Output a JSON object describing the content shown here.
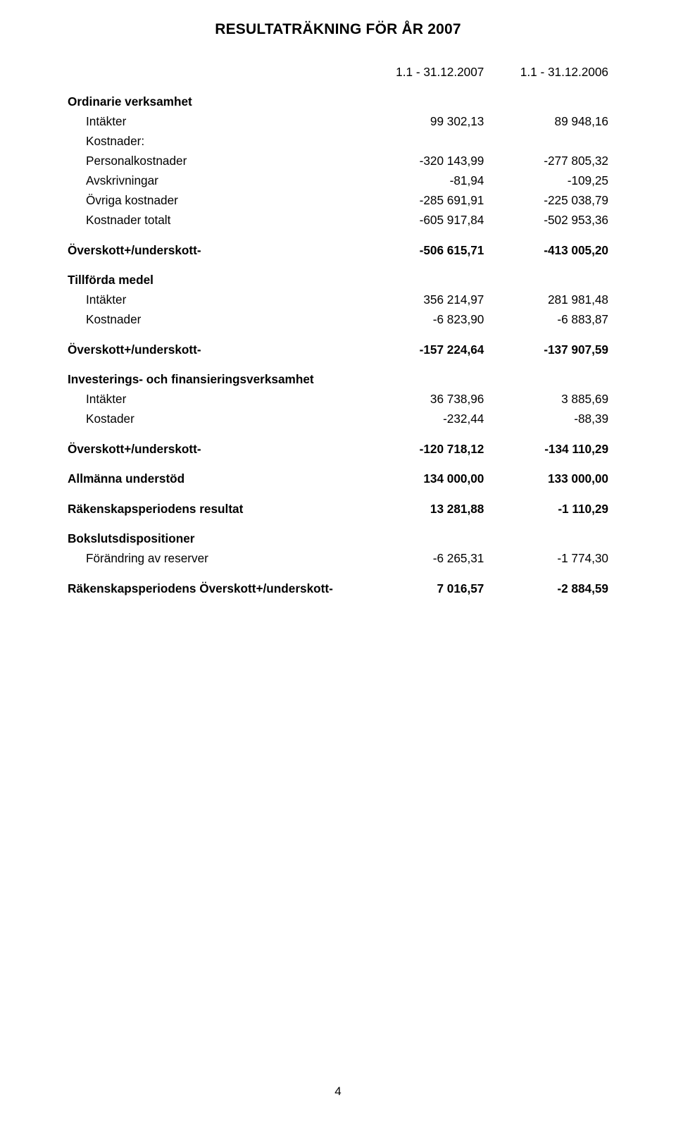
{
  "title": "RESULTATRÄKNING FÖR ÅR 2007",
  "periods": {
    "p1": "1.1 - 31.12.2007",
    "p2": "1.1 - 31.12.2006"
  },
  "section_ordinarie": {
    "heading": "Ordinarie verksamhet"
  },
  "ord_int": {
    "label": "Intäkter",
    "v1": "99 302,13",
    "v2": "89 948,16"
  },
  "ord_kostn_h": {
    "label": "Kostnader:"
  },
  "ord_pers": {
    "label": "Personalkostnader",
    "v1": "-320 143,99",
    "v2": "-277 805,32"
  },
  "ord_avskr": {
    "label": "Avskrivningar",
    "v1": "-81,94",
    "v2": "-109,25"
  },
  "ord_ovr": {
    "label": "Övriga kostnader",
    "v1": "-285 691,91",
    "v2": "-225 038,79"
  },
  "ord_tot": {
    "label": "Kostnader totalt",
    "v1": "-605 917,84",
    "v2": "-502 953,36"
  },
  "over1": {
    "label": "Överskott+/underskott-",
    "v1": "-506 615,71",
    "v2": "-413 005,20"
  },
  "section_tillforda": {
    "heading": "Tillförda medel"
  },
  "till_int": {
    "label": "Intäkter",
    "v1": "356 214,97",
    "v2": "281 981,48"
  },
  "till_kost": {
    "label": "Kostnader",
    "v1": "-6 823,90",
    "v2": "-6 883,87"
  },
  "over2": {
    "label": "Överskott+/underskott-",
    "v1": "-157 224,64",
    "v2": "-137 907,59"
  },
  "section_inv": {
    "heading": "Investerings- och finansieringsverksamhet"
  },
  "inv_int": {
    "label": "Intäkter",
    "v1": "36 738,96",
    "v2": "3 885,69"
  },
  "inv_kost": {
    "label": "Kostader",
    "v1": "-232,44",
    "v2": "-88,39"
  },
  "over3": {
    "label": "Överskott+/underskott-",
    "v1": "-120 718,12",
    "v2": "-134 110,29"
  },
  "allm": {
    "label": "Allmänna understöd",
    "v1": "134 000,00",
    "v2": "133 000,00"
  },
  "rak_res": {
    "label": "Räkenskapsperiodens resultat",
    "v1": "13 281,88",
    "v2": "-1 110,29"
  },
  "section_boksl": {
    "heading": "Bokslutsdispositioner"
  },
  "boksl_for": {
    "label": "Förändring av reserver",
    "v1": "-6 265,31",
    "v2": "-1 774,30"
  },
  "rak_over": {
    "label": "Räkenskapsperiodens Överskott+/underskott-",
    "v1": "7 016,57",
    "v2": "-2 884,59"
  },
  "page_number": "4"
}
